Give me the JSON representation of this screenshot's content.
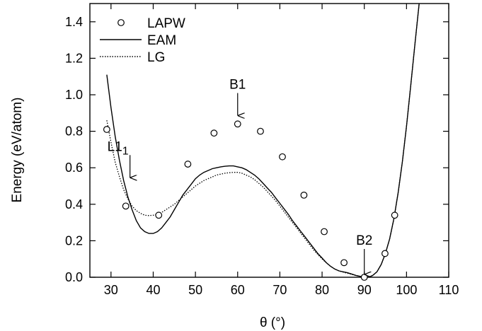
{
  "chart_data": {
    "type": "scatter",
    "xlabel": "θ (°)",
    "ylabel": "Energy (eV/atom)",
    "xlim": [
      25,
      110
    ],
    "ylim": [
      0,
      1.5
    ],
    "xticks": [
      "30",
      "40",
      "50",
      "60",
      "70",
      "80",
      "90",
      "100",
      "110"
    ],
    "yticks": [
      "0.0",
      "0.2",
      "0.4",
      "0.6",
      "0.8",
      "1.0",
      "1.2",
      "1.4"
    ],
    "grid": false,
    "legend": {
      "position": "top-left",
      "entries": [
        {
          "label": "LAPW",
          "style": "open-circle"
        },
        {
          "label": "EAM",
          "style": "solid-line"
        },
        {
          "label": "LG",
          "style": "dotted-line"
        }
      ]
    },
    "series": [
      {
        "name": "LAPW",
        "kind": "points",
        "x": [
          29.0,
          33.5,
          41.3,
          48.2,
          54.4,
          60.0,
          65.4,
          70.6,
          75.7,
          80.5,
          85.2,
          90.0,
          94.9,
          97.2
        ],
        "y": [
          0.81,
          0.39,
          0.34,
          0.62,
          0.79,
          0.84,
          0.8,
          0.66,
          0.45,
          0.25,
          0.08,
          0.0,
          0.13,
          0.34
        ]
      },
      {
        "name": "EAM",
        "kind": "line",
        "x": [
          29,
          30,
          31,
          32,
          33,
          34,
          35,
          36,
          37,
          38,
          39,
          40,
          41,
          42,
          43,
          44,
          45,
          46,
          47,
          48,
          49,
          50,
          51,
          52,
          53,
          54,
          55,
          56,
          57,
          58,
          59,
          60,
          61,
          62,
          63,
          64,
          65,
          66,
          67,
          68,
          69,
          70,
          71,
          72,
          73,
          74,
          75,
          76,
          77,
          78,
          79,
          80,
          81,
          82,
          83,
          84,
          85,
          86,
          87,
          88,
          89,
          90,
          91,
          92,
          93,
          94,
          95,
          96,
          97,
          98,
          99,
          100,
          101,
          102,
          103
        ],
        "y": [
          1.11,
          0.93,
          0.77,
          0.64,
          0.53,
          0.44,
          0.37,
          0.31,
          0.27,
          0.25,
          0.24,
          0.24,
          0.25,
          0.27,
          0.3,
          0.33,
          0.37,
          0.41,
          0.45,
          0.48,
          0.51,
          0.54,
          0.56,
          0.575,
          0.585,
          0.595,
          0.6,
          0.605,
          0.608,
          0.61,
          0.61,
          0.605,
          0.6,
          0.59,
          0.575,
          0.56,
          0.54,
          0.515,
          0.49,
          0.465,
          0.435,
          0.405,
          0.375,
          0.345,
          0.31,
          0.28,
          0.25,
          0.22,
          0.19,
          0.16,
          0.13,
          0.105,
          0.08,
          0.06,
          0.045,
          0.035,
          0.03,
          0.025,
          0.018,
          0.01,
          0.005,
          0.0,
          0.0,
          0.01,
          0.03,
          0.07,
          0.13,
          0.21,
          0.32,
          0.46,
          0.63,
          0.83,
          1.05,
          1.28,
          1.5
        ]
      },
      {
        "name": "LG",
        "kind": "line",
        "dotted": true,
        "x": [
          29,
          30,
          31,
          32,
          33,
          34,
          35,
          36,
          37,
          38,
          39,
          40,
          41,
          42,
          43,
          44,
          45,
          46,
          47,
          48,
          49,
          50,
          51,
          52,
          53,
          54,
          55,
          56,
          57,
          58,
          59,
          60,
          61,
          62,
          63,
          64,
          65,
          66,
          67,
          68,
          69,
          70,
          71,
          72,
          73,
          74,
          75,
          76,
          77,
          78,
          79,
          80,
          81,
          82,
          83,
          84,
          85,
          86,
          87,
          88,
          89,
          90,
          91,
          92,
          93,
          94,
          95,
          96,
          97,
          98,
          99,
          100,
          101,
          102,
          103
        ],
        "y": [
          0.86,
          0.74,
          0.63,
          0.55,
          0.48,
          0.43,
          0.39,
          0.365,
          0.35,
          0.34,
          0.338,
          0.34,
          0.345,
          0.355,
          0.37,
          0.385,
          0.4,
          0.42,
          0.44,
          0.46,
          0.48,
          0.5,
          0.515,
          0.53,
          0.54,
          0.55,
          0.56,
          0.565,
          0.57,
          0.573,
          0.575,
          0.575,
          0.57,
          0.56,
          0.55,
          0.535,
          0.515,
          0.495,
          0.47,
          0.445,
          0.42,
          0.39,
          0.36,
          0.33,
          0.3,
          0.27,
          0.24,
          0.21,
          0.18,
          0.15,
          0.125,
          0.1,
          0.08,
          0.06,
          0.045,
          0.035,
          0.028,
          0.022,
          0.016,
          0.01,
          0.005,
          0.002,
          0.0,
          0.01,
          0.03,
          0.07,
          0.13,
          0.21,
          0.32,
          0.46,
          0.63,
          0.83,
          1.05,
          1.28,
          1.5
        ]
      }
    ],
    "annotations": [
      {
        "label": "L1",
        "subscript": "1",
        "x": 34.5,
        "y": 0.53
      },
      {
        "label": "B1",
        "x": 60.0,
        "y": 0.87
      },
      {
        "label": "B2",
        "x": 90.0,
        "y": 0.0
      }
    ]
  }
}
